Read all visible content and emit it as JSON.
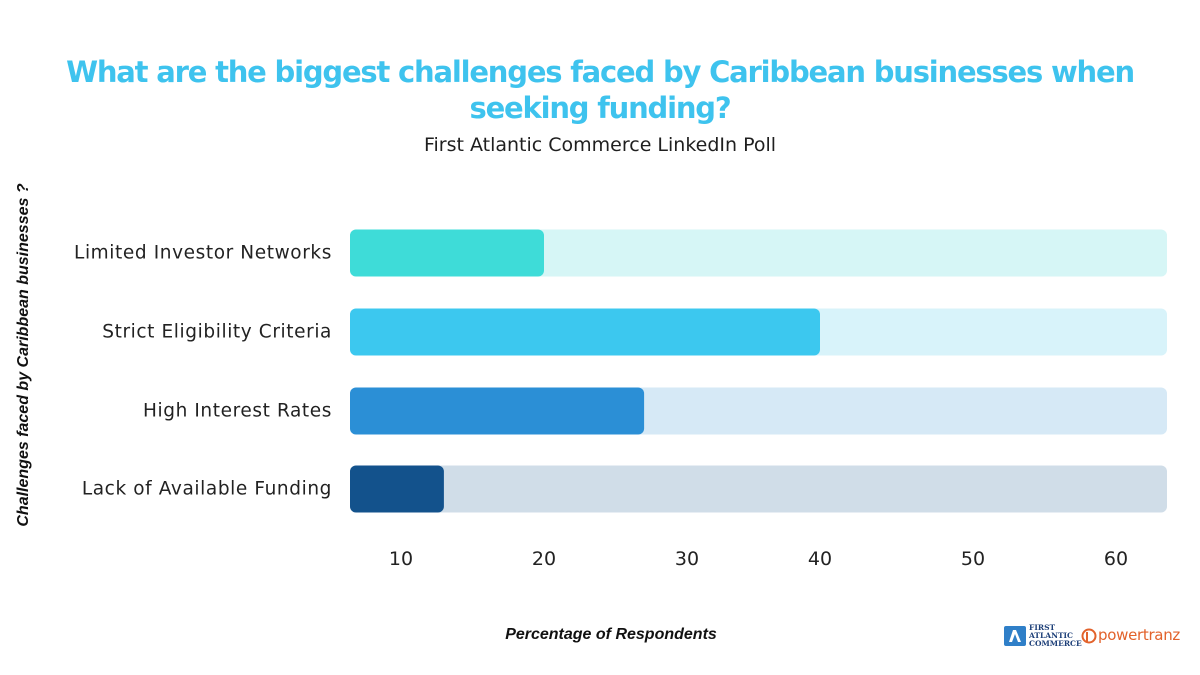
{
  "chart_data": {
    "type": "bar",
    "orientation": "horizontal",
    "title_lines": [
      "What are the biggest challenges faced by Caribbean businesses when",
      "seeking funding?"
    ],
    "subtitle": "First Atlantic Commerce LinkedIn Poll",
    "xlabel": "Percentage of Respondents",
    "ylabel": "Challenges faced by Caribbean businesses ?",
    "categories": [
      "Limited Investor Networks",
      "Strict Eligibility Criteria",
      "High Interest Rates",
      "Lack of Available Funding"
    ],
    "values": [
      20,
      40,
      27,
      13
    ],
    "colors": [
      "#3edcd8",
      "#3cc8ef",
      "#2b8fd6",
      "#13528c"
    ],
    "track_colors": [
      "#d6f6f6",
      "#d8f3fa",
      "#d6e9f6",
      "#d0dde8"
    ],
    "x_ticks": [
      {
        "label": "10",
        "value": 10
      },
      {
        "label": "20",
        "value": 20
      },
      {
        "label": "30",
        "value": 30
      },
      {
        "label": "40",
        "value": 40
      },
      {
        "label": "50",
        "value": 50
      },
      {
        "label": "60",
        "value": 60
      }
    ],
    "grid": false,
    "legend": "none"
  },
  "logos": {
    "fac_lines": [
      "FIRST",
      "ATLANTIC",
      "COMMERCE"
    ],
    "powertranz": "powertranz"
  }
}
